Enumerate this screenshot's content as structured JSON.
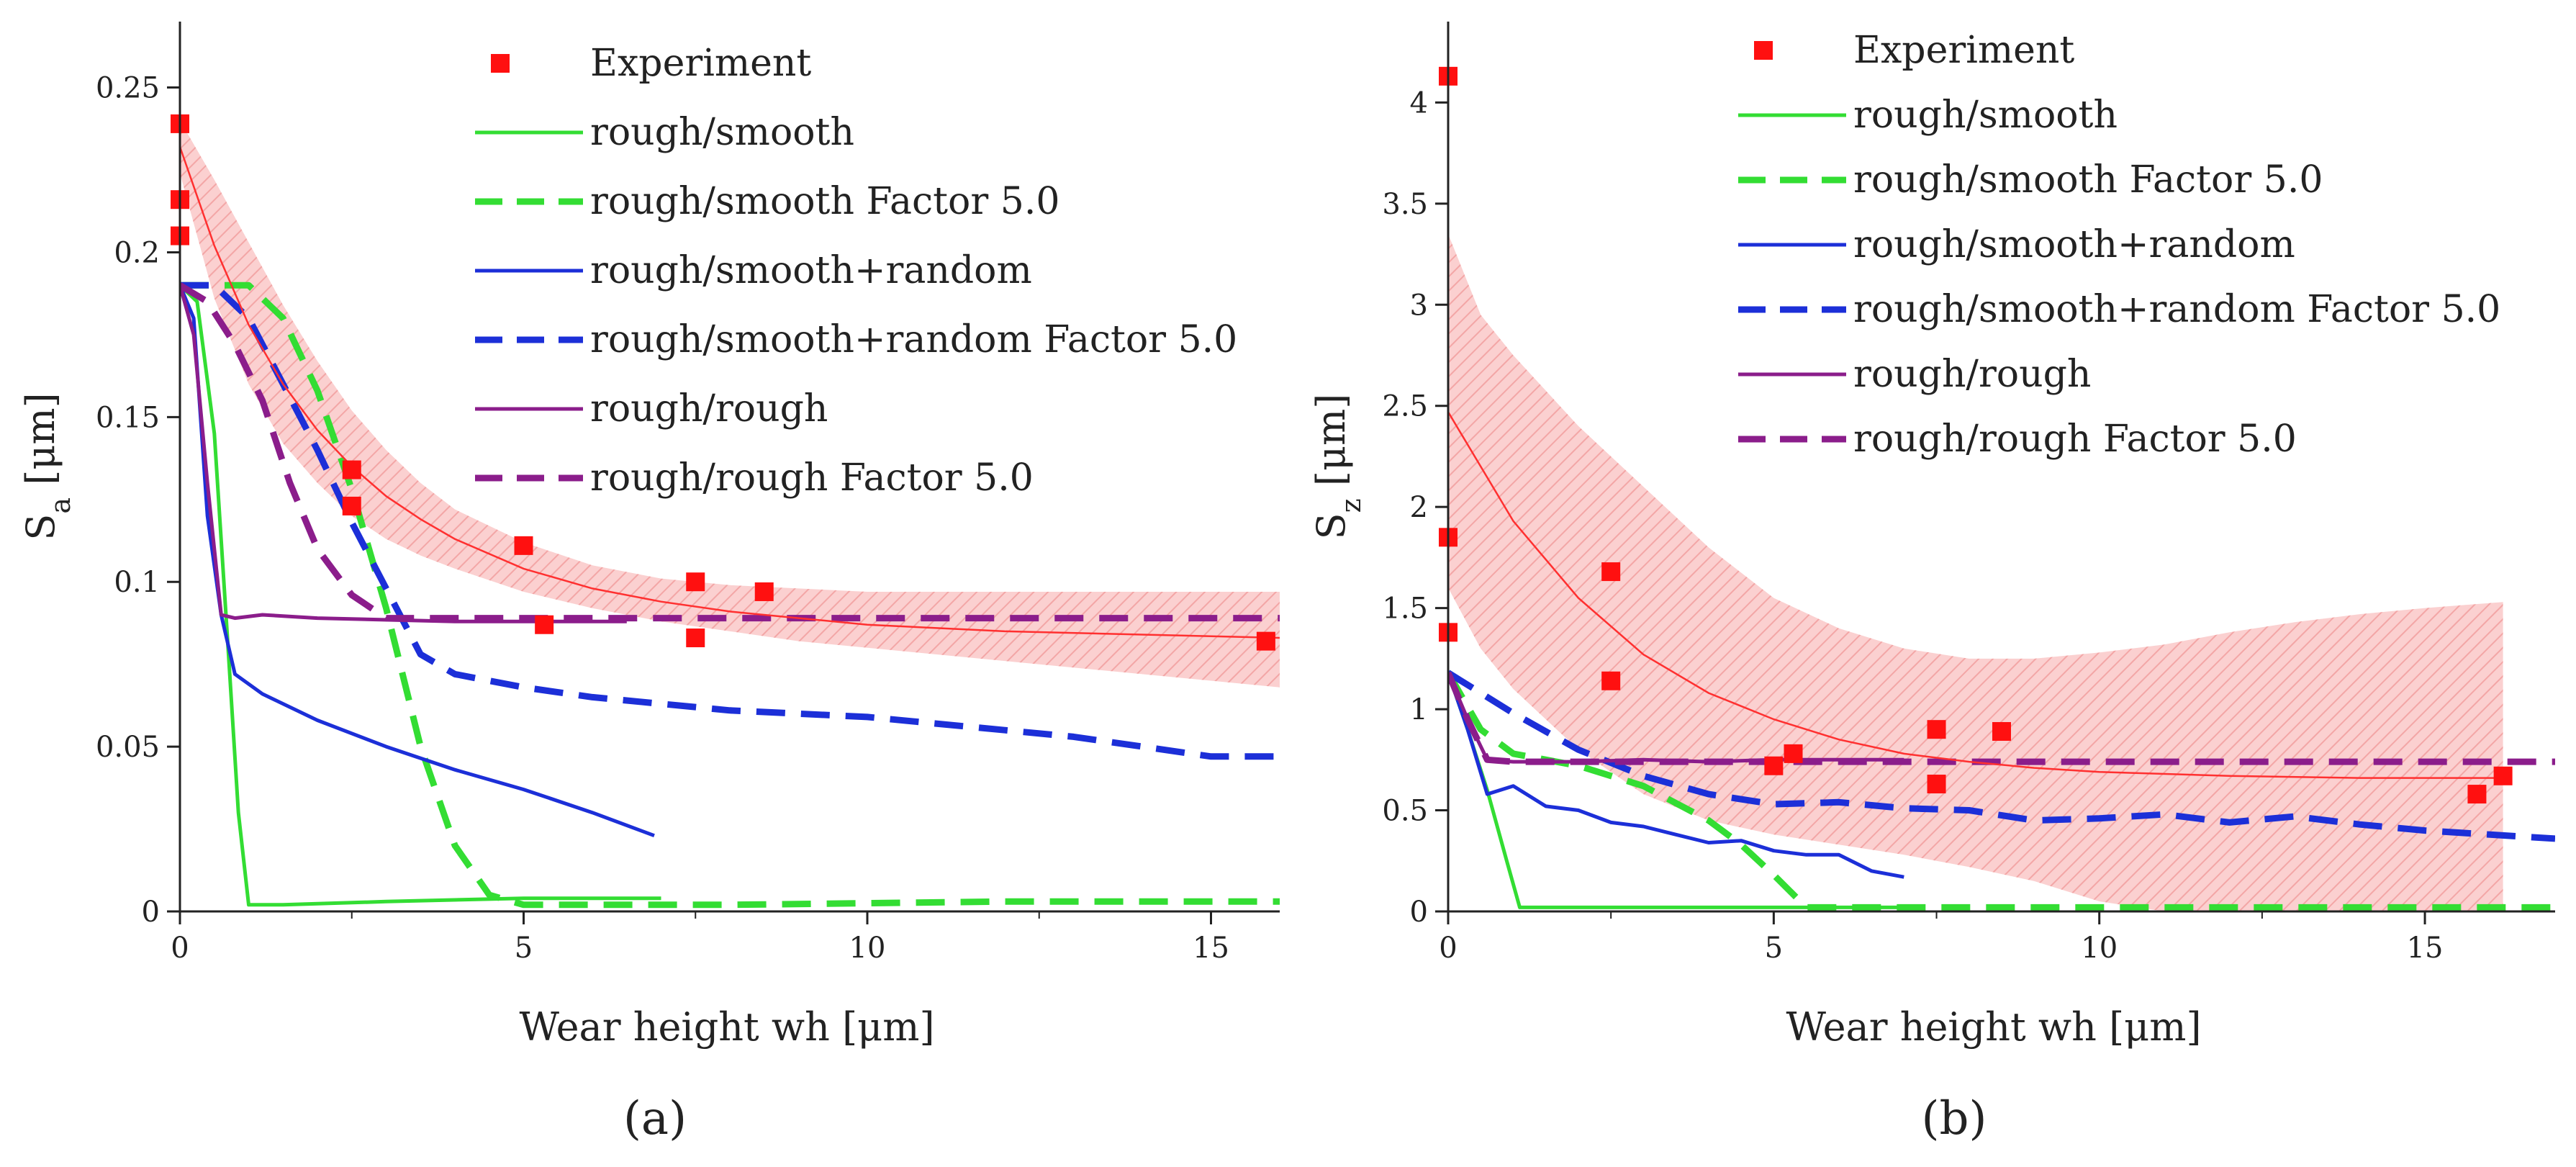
{
  "chart_data": [
    {
      "id": "a",
      "type": "line",
      "panel_label": "(a)",
      "xlabel": "Wear height wh [μm]",
      "ylabel_main": "S",
      "ylabel_sub": "a",
      "ylabel_unit": " [μm]",
      "xlim": [
        0,
        16
      ],
      "ylim": [
        0,
        0.27
      ],
      "xticks": [
        0,
        5,
        10,
        15
      ],
      "yticks": [
        0,
        0.05,
        0.1,
        0.15,
        0.2,
        0.25
      ],
      "ytick_labels": [
        "0",
        "0.05",
        "0.1",
        "0.15",
        "0.2",
        "0.25"
      ],
      "legend": {
        "position": "top-right",
        "entries": [
          {
            "label": "Experiment",
            "style": "marker",
            "color": "#ff1010"
          },
          {
            "label": "rough/smooth",
            "style": "solid",
            "color": "#33dd33"
          },
          {
            "label": "rough/smooth Factor 5.0",
            "style": "dashed",
            "color": "#33dd33"
          },
          {
            "label": "rough/smooth+random",
            "style": "solid",
            "color": "#1c2fd8"
          },
          {
            "label": "rough/smooth+random Factor 5.0",
            "style": "dashed",
            "color": "#1c2fd8"
          },
          {
            "label": "rough/rough",
            "style": "solid",
            "color": "#8b1d8b"
          },
          {
            "label": "rough/rough Factor 5.0",
            "style": "dashed",
            "color": "#8b1d8b"
          }
        ]
      },
      "experiment": {
        "x": [
          0,
          0,
          0,
          2.5,
          2.5,
          5,
          5.3,
          7.5,
          7.5,
          8.5,
          15.8
        ],
        "y": [
          0.239,
          0.216,
          0.205,
          0.134,
          0.123,
          0.111,
          0.087,
          0.1,
          0.083,
          0.097,
          0.082
        ]
      },
      "fit": {
        "color": "#ff3030",
        "x": [
          0,
          0.5,
          1,
          1.5,
          2,
          2.5,
          3,
          3.5,
          4,
          5,
          6,
          7,
          8,
          9,
          10,
          12,
          14,
          16
        ],
        "y": [
          0.232,
          0.202,
          0.178,
          0.16,
          0.146,
          0.135,
          0.126,
          0.119,
          0.113,
          0.104,
          0.098,
          0.094,
          0.091,
          0.089,
          0.087,
          0.085,
          0.084,
          0.083
        ]
      },
      "band": {
        "color": "#f08080",
        "x": [
          0,
          0.5,
          1,
          1.5,
          2,
          2.5,
          3,
          3.5,
          4,
          5,
          6,
          7,
          8,
          9,
          10,
          12,
          14,
          16
        ],
        "upper": [
          0.24,
          0.222,
          0.203,
          0.184,
          0.167,
          0.152,
          0.14,
          0.13,
          0.122,
          0.112,
          0.105,
          0.101,
          0.099,
          0.098,
          0.097,
          0.097,
          0.097,
          0.097
        ],
        "lower": [
          0.224,
          0.186,
          0.16,
          0.142,
          0.13,
          0.12,
          0.113,
          0.108,
          0.104,
          0.097,
          0.092,
          0.088,
          0.085,
          0.082,
          0.08,
          0.076,
          0.072,
          0.068
        ]
      },
      "series": [
        {
          "name": "rough/smooth",
          "color": "#33dd33",
          "dash": "solid",
          "x": [
            0,
            0.25,
            0.5,
            0.7,
            0.85,
            1.0,
            1.5,
            3,
            5,
            7
          ],
          "y": [
            0.19,
            0.185,
            0.145,
            0.08,
            0.03,
            0.002,
            0.002,
            0.003,
            0.004,
            0.004
          ]
        },
        {
          "name": "rough/smooth Factor 5.0",
          "color": "#33dd33",
          "dash": "dashed",
          "x": [
            0,
            0.3,
            0.6,
            1.0,
            1.5,
            2.0,
            2.5,
            3.0,
            3.5,
            4.0,
            4.5,
            5.0,
            8,
            12,
            16
          ],
          "y": [
            0.19,
            0.19,
            0.19,
            0.19,
            0.18,
            0.158,
            0.128,
            0.092,
            0.05,
            0.02,
            0.005,
            0.002,
            0.002,
            0.003,
            0.003
          ]
        },
        {
          "name": "rough/smooth+random",
          "color": "#1c2fd8",
          "dash": "solid",
          "x": [
            0,
            0.2,
            0.4,
            0.6,
            0.8,
            1.2,
            2,
            3,
            4,
            5,
            6,
            6.9
          ],
          "y": [
            0.19,
            0.18,
            0.12,
            0.09,
            0.072,
            0.066,
            0.058,
            0.05,
            0.043,
            0.037,
            0.03,
            0.023
          ]
        },
        {
          "name": "rough/smooth+random Factor 5.0",
          "color": "#1c2fd8",
          "dash": "dashed",
          "x": [
            0,
            0.5,
            1.0,
            1.5,
            2.0,
            2.5,
            3.0,
            3.5,
            4,
            5,
            6,
            7,
            8,
            9,
            10,
            11,
            12,
            13,
            14,
            15,
            16
          ],
          "y": [
            0.19,
            0.19,
            0.18,
            0.16,
            0.14,
            0.118,
            0.098,
            0.078,
            0.072,
            0.068,
            0.065,
            0.063,
            0.061,
            0.06,
            0.059,
            0.057,
            0.055,
            0.053,
            0.05,
            0.047,
            0.047
          ]
        },
        {
          "name": "rough/rough",
          "color": "#8b1d8b",
          "dash": "solid",
          "x": [
            0,
            0.2,
            0.4,
            0.6,
            0.8,
            1.2,
            2,
            4,
            6,
            6.5
          ],
          "y": [
            0.19,
            0.175,
            0.13,
            0.09,
            0.089,
            0.09,
            0.089,
            0.088,
            0.088,
            0.088
          ]
        },
        {
          "name": "rough/rough Factor 5.0",
          "color": "#8b1d8b",
          "dash": "dashed",
          "x": [
            0,
            0.4,
            0.8,
            1.2,
            1.6,
            2.0,
            2.5,
            3.0,
            4,
            6,
            8,
            12,
            16
          ],
          "y": [
            0.19,
            0.185,
            0.172,
            0.155,
            0.13,
            0.11,
            0.096,
            0.089,
            0.089,
            0.089,
            0.089,
            0.089,
            0.089
          ]
        }
      ]
    },
    {
      "id": "b",
      "type": "line",
      "panel_label": "(b)",
      "xlabel": "Wear height wh [μm]",
      "ylabel_main": "S",
      "ylabel_sub": "z",
      "ylabel_unit": " [μm]",
      "xlim": [
        0,
        17
      ],
      "ylim": [
        0,
        4.4
      ],
      "xticks": [
        0,
        5,
        10,
        15
      ],
      "yticks": [
        0,
        0.5,
        1,
        1.5,
        2,
        2.5,
        3,
        3.5,
        4
      ],
      "ytick_labels": [
        "0",
        "0.5",
        "1",
        "1.5",
        "2",
        "2.5",
        "3",
        "3.5",
        "4"
      ],
      "legend": {
        "position": "top-right",
        "entries": [
          {
            "label": "Experiment",
            "style": "marker",
            "color": "#ff1010"
          },
          {
            "label": "rough/smooth",
            "style": "solid",
            "color": "#33dd33"
          },
          {
            "label": "rough/smooth Factor 5.0",
            "style": "dashed",
            "color": "#33dd33"
          },
          {
            "label": "rough/smooth+random",
            "style": "solid",
            "color": "#1c2fd8"
          },
          {
            "label": "rough/smooth+random Factor 5.0",
            "style": "dashed",
            "color": "#1c2fd8"
          },
          {
            "label": "rough/rough",
            "style": "solid",
            "color": "#8b1d8b"
          },
          {
            "label": "rough/rough Factor 5.0",
            "style": "dashed",
            "color": "#8b1d8b"
          }
        ]
      },
      "experiment": {
        "x": [
          0,
          0,
          0,
          2.5,
          2.5,
          5,
          5.3,
          7.5,
          7.5,
          8.5,
          15.8,
          16.2
        ],
        "y": [
          4.13,
          1.85,
          1.38,
          1.68,
          1.14,
          0.72,
          0.78,
          0.9,
          0.63,
          0.89,
          0.58,
          0.67
        ]
      },
      "fit": {
        "color": "#ff3030",
        "x": [
          0,
          1,
          2,
          3,
          4,
          5,
          6,
          7,
          8,
          9,
          10,
          12,
          14,
          16.2
        ],
        "y": [
          2.47,
          1.93,
          1.55,
          1.27,
          1.08,
          0.95,
          0.85,
          0.78,
          0.74,
          0.71,
          0.69,
          0.67,
          0.66,
          0.66
        ]
      },
      "band": {
        "color": "#f08080",
        "x": [
          0,
          0.5,
          1,
          2,
          3,
          4,
          5,
          6,
          7,
          8,
          9,
          10,
          11,
          12,
          13,
          14,
          15,
          16.2
        ],
        "upper": [
          3.35,
          2.95,
          2.75,
          2.4,
          2.1,
          1.8,
          1.55,
          1.4,
          1.3,
          1.25,
          1.25,
          1.28,
          1.32,
          1.38,
          1.43,
          1.47,
          1.5,
          1.53
        ],
        "lower": [
          1.6,
          1.3,
          1.1,
          0.8,
          0.58,
          0.45,
          0.38,
          0.33,
          0.28,
          0.22,
          0.15,
          0.05,
          0,
          0,
          0,
          0,
          0,
          0
        ]
      },
      "series": [
        {
          "name": "rough/smooth",
          "color": "#33dd33",
          "dash": "solid",
          "x": [
            0,
            0.3,
            0.6,
            0.9,
            1.1,
            1.5,
            3,
            5,
            7
          ],
          "y": [
            1.18,
            0.9,
            0.6,
            0.25,
            0.02,
            0.02,
            0.02,
            0.02,
            0.02
          ]
        },
        {
          "name": "rough/smooth Factor 5.0",
          "color": "#33dd33",
          "dash": "dashed",
          "x": [
            0,
            0.5,
            1,
            2,
            3,
            4,
            4.5,
            5.0,
            5.5,
            7,
            10,
            13,
            17
          ],
          "y": [
            1.18,
            0.9,
            0.78,
            0.72,
            0.62,
            0.45,
            0.33,
            0.18,
            0.02,
            0.02,
            0.02,
            0.02,
            0.02
          ]
        },
        {
          "name": "rough/smooth+random",
          "color": "#1c2fd8",
          "dash": "solid",
          "x": [
            0,
            0.3,
            0.6,
            1,
            1.5,
            2,
            2.5,
            3,
            3.5,
            4,
            4.5,
            5,
            5.5,
            6,
            6.5,
            7
          ],
          "y": [
            1.18,
            0.9,
            0.58,
            0.62,
            0.52,
            0.5,
            0.44,
            0.42,
            0.38,
            0.34,
            0.35,
            0.3,
            0.28,
            0.28,
            0.2,
            0.17
          ]
        },
        {
          "name": "rough/smooth+random Factor 5.0",
          "color": "#1c2fd8",
          "dash": "dashed",
          "x": [
            0,
            1,
            2,
            3,
            4,
            5,
            6,
            7,
            8,
            9,
            10,
            11,
            12,
            13,
            14,
            15,
            16,
            17
          ],
          "y": [
            1.18,
            0.98,
            0.8,
            0.67,
            0.58,
            0.53,
            0.54,
            0.51,
            0.5,
            0.45,
            0.46,
            0.48,
            0.44,
            0.47,
            0.43,
            0.4,
            0.38,
            0.36
          ]
        },
        {
          "name": "rough/rough",
          "color": "#8b1d8b",
          "dash": "solid",
          "x": [
            0,
            0.3,
            0.6,
            1,
            2,
            3,
            4,
            5,
            6,
            7
          ],
          "y": [
            1.18,
            0.95,
            0.75,
            0.74,
            0.74,
            0.75,
            0.74,
            0.75,
            0.75,
            0.75
          ]
        },
        {
          "name": "rough/rough Factor 5.0",
          "color": "#8b1d8b",
          "dash": "dashed",
          "x": [
            0,
            0.3,
            0.6,
            1,
            2,
            4,
            6,
            8,
            10,
            12,
            14,
            17
          ],
          "y": [
            1.18,
            0.95,
            0.75,
            0.74,
            0.74,
            0.74,
            0.74,
            0.74,
            0.74,
            0.74,
            0.74,
            0.74
          ]
        }
      ]
    }
  ]
}
